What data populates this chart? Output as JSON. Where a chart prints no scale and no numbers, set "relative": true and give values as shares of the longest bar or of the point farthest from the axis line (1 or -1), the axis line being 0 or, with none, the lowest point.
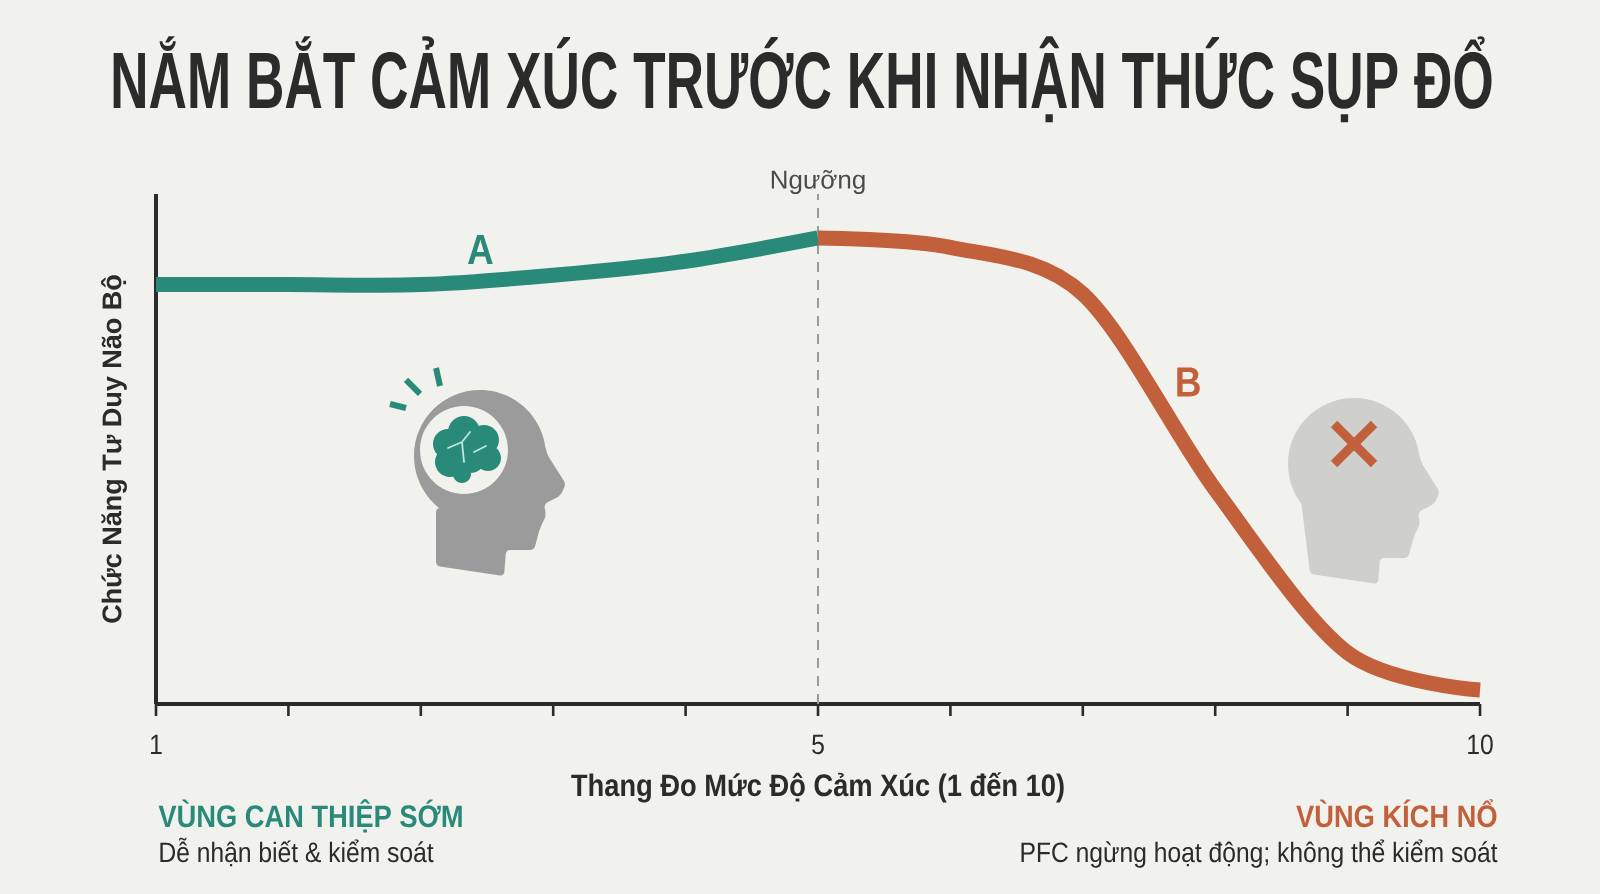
{
  "chart_data": {
    "type": "line",
    "title": "NẮM BẮT CẢM XÚC TRƯỚC KHI NHẬN THỨC SỤP ĐỔ",
    "xlabel": "Thang Đo Mức Độ Cảm Xúc (1 đến 10)",
    "ylabel": "Chức Năng Tư Duy Não Bộ",
    "categories": [
      "1",
      null,
      null,
      null,
      null,
      "5",
      null,
      null,
      null,
      null,
      "10"
    ],
    "relative": true,
    "marker": "none",
    "line_style": "solid",
    "series": [
      {
        "name": "A",
        "color": "#2a8a7a",
        "values": [
          0.9,
          0.9,
          0.9,
          0.92,
          0.95,
          1.0,
          null,
          null,
          null,
          null,
          null
        ]
      },
      {
        "name": "B",
        "color": "#c2603c",
        "values": [
          null,
          null,
          null,
          null,
          null,
          1.0,
          0.98,
          0.88,
          0.46,
          0.11,
          0.03
        ]
      }
    ],
    "ref_lines": [
      {
        "axis": "x",
        "value": "5",
        "label": "Ngưỡng",
        "color": "#9a9a9a",
        "line_style": "dashed"
      }
    ],
    "annotations": [
      "VÙNG CAN THIỆP SỚM",
      "Dễ nhận biết & kiểm soát",
      "VÙNG KÍCH NỔ",
      "PFC ngừng hoạt động; không thể kiểm soát"
    ]
  }
}
